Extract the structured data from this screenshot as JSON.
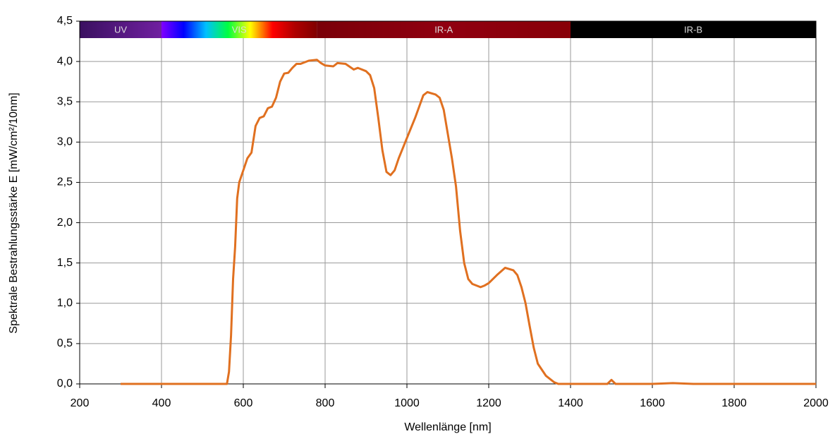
{
  "chart_data": {
    "type": "line",
    "xlabel": "Wellenlänge [nm]",
    "ylabel": "Spektrale Bestrahlungsstärke E [mW/cm²/10nm]",
    "xlim": [
      200,
      2000
    ],
    "ylim": [
      0,
      4.5
    ],
    "xticks": [
      200,
      400,
      600,
      800,
      1000,
      1200,
      1400,
      1600,
      1800,
      2000
    ],
    "yticks": [
      {
        "value": 0,
        "label": "0,0"
      },
      {
        "value": 0.5,
        "label": "0,5"
      },
      {
        "value": 1,
        "label": "1,0"
      },
      {
        "value": 1.5,
        "label": "1,5"
      },
      {
        "value": 2,
        "label": "2,0"
      },
      {
        "value": 2.5,
        "label": "2,5"
      },
      {
        "value": 3,
        "label": "3,0"
      },
      {
        "value": 3.5,
        "label": "3,5"
      },
      {
        "value": 4,
        "label": "4,0"
      },
      {
        "value": 4.5,
        "label": "4,5"
      }
    ],
    "grid": true,
    "bands": [
      {
        "name": "UV",
        "range": [
          200,
          400
        ],
        "colors": [
          "#3a1060",
          "#7020a0"
        ]
      },
      {
        "name": "VIS",
        "range": [
          400,
          780
        ],
        "colors": [
          "#8000ff",
          "#0000ff",
          "#00c0ff",
          "#00ff40",
          "#ffff00",
          "#ff0000",
          "#b00000",
          "#800000"
        ]
      },
      {
        "name": "IR-A",
        "range": [
          780,
          1400
        ],
        "colors": [
          "#7a0008",
          "#900010",
          "#880008"
        ]
      },
      {
        "name": "IR-B",
        "range": [
          1400,
          2000
        ],
        "colors": [
          "#000000",
          "#000000"
        ]
      }
    ],
    "series": [
      {
        "color": "#e07020",
        "x": [
          300,
          400,
          500,
          560,
          565,
          570,
          575,
          580,
          585,
          590,
          600,
          610,
          620,
          630,
          640,
          650,
          660,
          670,
          680,
          690,
          700,
          710,
          720,
          730,
          740,
          760,
          780,
          790,
          800,
          820,
          830,
          850,
          870,
          880,
          900,
          910,
          920,
          930,
          940,
          950,
          960,
          970,
          980,
          1000,
          1020,
          1040,
          1050,
          1070,
          1080,
          1090,
          1100,
          1110,
          1120,
          1130,
          1140,
          1150,
          1160,
          1170,
          1180,
          1190,
          1200,
          1220,
          1240,
          1260,
          1270,
          1280,
          1290,
          1300,
          1310,
          1320,
          1340,
          1360,
          1370,
          1400,
          1490,
          1500,
          1510,
          1600,
          1650,
          1700,
          2000
        ],
        "values": [
          0,
          0,
          0,
          0,
          0.15,
          0.6,
          1.3,
          1.7,
          2.3,
          2.5,
          2.65,
          2.8,
          2.87,
          3.2,
          3.3,
          3.32,
          3.42,
          3.44,
          3.55,
          3.75,
          3.85,
          3.86,
          3.92,
          3.97,
          3.97,
          4.01,
          4.02,
          3.98,
          3.95,
          3.94,
          3.98,
          3.97,
          3.9,
          3.92,
          3.88,
          3.83,
          3.67,
          3.3,
          2.9,
          2.63,
          2.59,
          2.65,
          2.8,
          3.05,
          3.3,
          3.58,
          3.62,
          3.59,
          3.55,
          3.4,
          3.1,
          2.8,
          2.45,
          1.9,
          1.5,
          1.3,
          1.24,
          1.22,
          1.2,
          1.22,
          1.25,
          1.35,
          1.44,
          1.41,
          1.35,
          1.2,
          1.0,
          0.72,
          0.45,
          0.25,
          0.1,
          0.02,
          0,
          0,
          0,
          0.05,
          0,
          0,
          0.01,
          0,
          0
        ]
      }
    ]
  }
}
